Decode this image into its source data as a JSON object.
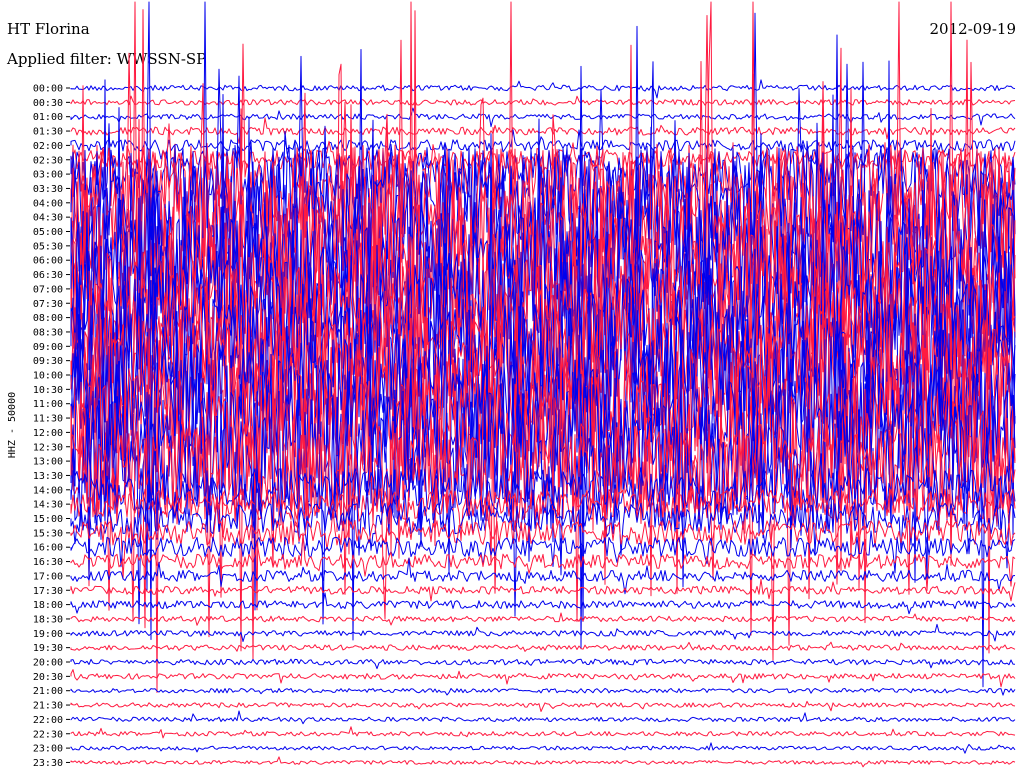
{
  "header": {
    "station": "HT Florina",
    "filter": "Applied filter: WWSSN-SP",
    "date": "2012-09-19"
  },
  "colors": {
    "odd_trace": "#0000ee",
    "even_trace": "#ff1a40",
    "background": "#ffffff"
  },
  "chart_data": {
    "type": "helicorder",
    "channel_label": "HHZ - 50000",
    "row_interval_minutes": 30,
    "row_labels": [
      "00:00",
      "00:30",
      "01:00",
      "01:30",
      "02:00",
      "02:30",
      "03:00",
      "03:30",
      "04:00",
      "04:30",
      "05:00",
      "05:30",
      "06:00",
      "06:30",
      "07:00",
      "07:30",
      "08:00",
      "08:30",
      "09:00",
      "09:30",
      "10:00",
      "10:30",
      "11:00",
      "11:30",
      "12:00",
      "12:30",
      "13:00",
      "13:30",
      "14:00",
      "14:30",
      "15:00",
      "15:30",
      "16:00",
      "16:30",
      "17:00",
      "17:30",
      "18:00",
      "18:30",
      "19:00",
      "19:30",
      "20:00",
      "20:30",
      "21:00",
      "21:30",
      "22:00",
      "22:30",
      "23:00",
      "23:30"
    ],
    "series": [
      {
        "values": [
          0.15,
          0.15,
          0.15,
          0.2,
          0.25,
          0.35,
          0.6,
          0.8,
          0.9,
          1.0,
          1.0,
          1.0,
          1.0,
          1.0,
          1.0,
          1.0,
          1.0,
          1.0,
          1.0,
          1.0,
          1.0,
          1.0,
          1.0,
          1.0,
          1.0,
          1.0,
          1.0,
          0.85,
          0.55,
          0.45,
          0.45,
          0.4,
          0.35,
          0.3,
          0.25,
          0.2,
          0.2,
          0.15,
          0.15,
          0.15,
          0.15,
          0.15,
          0.12,
          0.12,
          0.12,
          0.12,
          0.1,
          0.1
        ]
      }
    ]
  }
}
